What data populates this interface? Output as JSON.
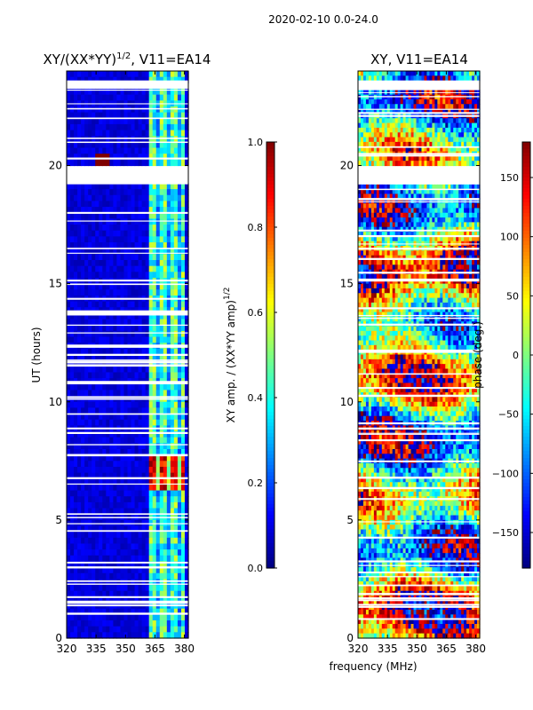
{
  "figure": {
    "suptitle": "2020-02-10 0.0-24.0",
    "shared_xlabel": "frequency (MHz)"
  },
  "colors": {
    "jet": [
      "#00007f",
      "#0000ff",
      "#007fff",
      "#00ffff",
      "#7fff7f",
      "#ffff00",
      "#ff7f00",
      "#ff0000",
      "#7f0000"
    ],
    "gap": "#ffffff",
    "axis": "#000000"
  },
  "chart_data": [
    {
      "type": "heatmap",
      "title": "XY/(XX*YY)^1/2, V11=EA14",
      "title_main": "XY/(XX*YY)",
      "title_exp": "1/2",
      "title_tail": ", V11=EA14",
      "xlabel": "frequency (MHz)",
      "ylabel": "UT (hours)",
      "xlim": [
        320,
        382
      ],
      "ylim": [
        0,
        24
      ],
      "xticks": [
        320,
        335,
        350,
        365,
        380
      ],
      "yticks": [
        0,
        5,
        10,
        15,
        20
      ],
      "colorbar": {
        "label": "XY amp. / (XX*YY amp)^1/2",
        "label_main": "XY amp. / (XX*YY amp)",
        "label_exp": "1/2",
        "range": [
          0.0,
          1.0
        ],
        "ticks": [
          "0.0",
          "0.2",
          "0.4",
          "0.6",
          "0.8",
          "1.0"
        ]
      },
      "features": {
        "background_value": 0.05,
        "band_freq_range": [
          362,
          381
        ],
        "band_value_range": [
          0.3,
          0.6
        ],
        "strong_rfi_time_range": [
          6.2,
          7.8
        ],
        "strong_rfi_value_range": [
          0.75,
          1.0
        ],
        "spot": {
          "freq": 338,
          "time": 20.2,
          "value": 1.0
        },
        "blank_time_ranges": [
          [
            19.3,
            19.9
          ],
          [
            23.3,
            23.6
          ]
        ]
      }
    },
    {
      "type": "heatmap",
      "title": "XY, V11=EA14",
      "xlabel": "frequency (MHz)",
      "ylabel": "",
      "xlim": [
        320,
        382
      ],
      "ylim": [
        0,
        24
      ],
      "xticks": [
        320,
        335,
        350,
        365,
        380
      ],
      "yticks": [
        0,
        5,
        10,
        15,
        20
      ],
      "colorbar": {
        "label": "phase (deg.)",
        "range": [
          -180,
          180
        ],
        "ticks": [
          "150",
          "100",
          "50",
          "0",
          "−50",
          "−100",
          "−150"
        ]
      },
      "features": {
        "phase_range": [
          -180,
          180
        ],
        "blank_time_ranges": [
          [
            19.3,
            19.9
          ],
          [
            23.3,
            23.6
          ]
        ]
      }
    }
  ]
}
